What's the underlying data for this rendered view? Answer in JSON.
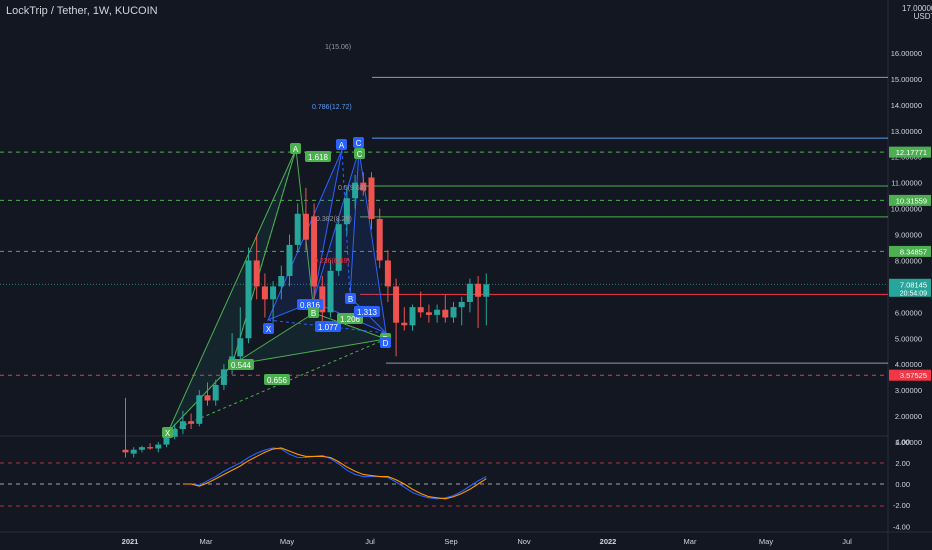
{
  "header": {
    "symbol_title": "LockTrip / Tether, 1W, KUCOIN"
  },
  "price_axis": {
    "currency_top": "17.00000",
    "currency": "USDT",
    "ticks": [
      "16.00000",
      "15.00000",
      "14.00000",
      "13.00000",
      "12.00000",
      "11.00000",
      "10.00000",
      "9.00000",
      "8.00000",
      "7.00000",
      "6.00000",
      "5.00000",
      "4.00000",
      "3.00000",
      "2.00000",
      "1.00000"
    ],
    "badges": [
      {
        "text": "12.17771",
        "color": "#4caf50"
      },
      {
        "text": "10.31559",
        "color": "#4caf50"
      },
      {
        "text": "8.34857",
        "color": "#4caf50"
      },
      {
        "text": "7.08145",
        "color": "#26a69a",
        "sub": "20:54:09"
      },
      {
        "text": "3.57525",
        "color": "#f23645"
      }
    ]
  },
  "osc_axis": {
    "ticks": [
      "4.00",
      "2.00",
      "0.00",
      "-2.00",
      "-4.00"
    ]
  },
  "time_axis": {
    "labels": [
      "2021",
      "Mar",
      "May",
      "Jul",
      "Sep",
      "Nov",
      "2022",
      "Mar",
      "May",
      "Jul"
    ]
  },
  "fib_labels": [
    {
      "text": "1(15.06)",
      "color": "#9598a1"
    },
    {
      "text": "0.786(12.72)",
      "color": "#5b9cf6"
    },
    {
      "text": "1.618",
      "color": "#4caf50"
    },
    {
      "text": "0.5(9.68)",
      "color": "#9598a1"
    },
    {
      "text": "0.382(8.29)",
      "color": "#9598a1"
    },
    {
      "text": "0.236(6.69)",
      "color": "#f23645"
    }
  ],
  "pattern_labels": {
    "points": [
      "X",
      "A",
      "B",
      "C",
      "D",
      "X",
      "A",
      "B",
      "C",
      "D"
    ],
    "ratios": [
      "0.544",
      "0.656",
      "0.816",
      "1.077",
      "1.206",
      "1.313",
      "1.618"
    ]
  },
  "colors": {
    "bull": "#26a69a",
    "bear": "#ef5350",
    "green_pattern": "#4caf50",
    "blue_pattern": "#2962ff",
    "osc_blue": "#2962ff",
    "osc_orange": "#ff9800"
  },
  "chart_data": {
    "type": "candlestick",
    "title": "LockTrip / Tether, 1W, KUCOIN",
    "ylim": [
      0,
      17
    ],
    "last_price": 7.08145,
    "candles": [
      {
        "o": 0.7,
        "h": 2.7,
        "l": 0.4,
        "c": 0.6
      },
      {
        "o": 0.55,
        "h": 0.8,
        "l": 0.4,
        "c": 0.7
      },
      {
        "o": 0.7,
        "h": 0.85,
        "l": 0.6,
        "c": 0.8
      },
      {
        "o": 0.8,
        "h": 0.95,
        "l": 0.7,
        "c": 0.75
      },
      {
        "o": 0.75,
        "h": 1.0,
        "l": 0.6,
        "c": 0.9
      },
      {
        "o": 0.9,
        "h": 1.3,
        "l": 0.8,
        "c": 1.2
      },
      {
        "o": 1.2,
        "h": 1.7,
        "l": 1.1,
        "c": 1.5
      },
      {
        "o": 1.5,
        "h": 2.2,
        "l": 1.3,
        "c": 1.8
      },
      {
        "o": 1.8,
        "h": 2.1,
        "l": 1.5,
        "c": 1.7
      },
      {
        "o": 1.7,
        "h": 3.0,
        "l": 1.6,
        "c": 2.8
      },
      {
        "o": 2.8,
        "h": 3.3,
        "l": 2.4,
        "c": 2.6
      },
      {
        "o": 2.6,
        "h": 3.4,
        "l": 2.4,
        "c": 3.2
      },
      {
        "o": 3.2,
        "h": 4.0,
        "l": 3.0,
        "c": 3.8
      },
      {
        "o": 3.8,
        "h": 5.2,
        "l": 3.6,
        "c": 4.3
      },
      {
        "o": 4.3,
        "h": 6.2,
        "l": 4.0,
        "c": 5.0
      },
      {
        "o": 5.0,
        "h": 8.5,
        "l": 4.8,
        "c": 8.0
      },
      {
        "o": 8.0,
        "h": 9.0,
        "l": 6.5,
        "c": 7.0
      },
      {
        "o": 7.0,
        "h": 7.5,
        "l": 5.8,
        "c": 6.5
      },
      {
        "o": 6.5,
        "h": 7.2,
        "l": 5.6,
        "c": 7.0
      },
      {
        "o": 7.0,
        "h": 7.8,
        "l": 6.5,
        "c": 7.4
      },
      {
        "o": 7.4,
        "h": 9.0,
        "l": 7.0,
        "c": 8.6
      },
      {
        "o": 8.6,
        "h": 10.2,
        "l": 8.3,
        "c": 9.8
      },
      {
        "o": 9.8,
        "h": 10.8,
        "l": 8.4,
        "c": 8.8
      },
      {
        "o": 9.7,
        "h": 10.2,
        "l": 6.0,
        "c": 7.0
      },
      {
        "o": 7.0,
        "h": 7.4,
        "l": 5.4,
        "c": 6.0
      },
      {
        "o": 6.0,
        "h": 8.0,
        "l": 5.8,
        "c": 7.6
      },
      {
        "o": 7.6,
        "h": 9.6,
        "l": 7.4,
        "c": 9.4
      },
      {
        "o": 9.4,
        "h": 10.8,
        "l": 9.0,
        "c": 10.4
      },
      {
        "o": 10.4,
        "h": 11.3,
        "l": 10.0,
        "c": 11.0
      },
      {
        "o": 11.0,
        "h": 11.4,
        "l": 10.5,
        "c": 10.7
      },
      {
        "o": 11.2,
        "h": 11.4,
        "l": 9.2,
        "c": 9.6
      },
      {
        "o": 9.6,
        "h": 10.0,
        "l": 7.7,
        "c": 8.0
      },
      {
        "o": 8.0,
        "h": 8.4,
        "l": 6.4,
        "c": 7.0
      },
      {
        "o": 7.0,
        "h": 7.3,
        "l": 4.3,
        "c": 5.6
      },
      {
        "o": 5.6,
        "h": 6.2,
        "l": 5.3,
        "c": 5.5
      },
      {
        "o": 5.5,
        "h": 6.3,
        "l": 5.3,
        "c": 6.2
      },
      {
        "o": 6.2,
        "h": 6.8,
        "l": 5.8,
        "c": 6.0
      },
      {
        "o": 6.0,
        "h": 6.3,
        "l": 5.6,
        "c": 5.9
      },
      {
        "o": 5.9,
        "h": 6.3,
        "l": 5.6,
        "c": 6.1
      },
      {
        "o": 6.1,
        "h": 6.7,
        "l": 5.6,
        "c": 5.8
      },
      {
        "o": 5.8,
        "h": 6.4,
        "l": 5.6,
        "c": 6.2
      },
      {
        "o": 6.2,
        "h": 6.6,
        "l": 5.5,
        "c": 6.4
      },
      {
        "o": 6.4,
        "h": 7.3,
        "l": 6.0,
        "c": 7.1
      },
      {
        "o": 7.1,
        "h": 7.4,
        "l": 5.4,
        "c": 6.6
      },
      {
        "o": 6.6,
        "h": 7.5,
        "l": 5.5,
        "c": 7.08
      }
    ],
    "horizontal_levels": [
      {
        "price": 15.06,
        "color": "#9598a1",
        "style": "solid"
      },
      {
        "price": 12.72,
        "color": "#5b9cf6",
        "style": "solid"
      },
      {
        "price": 12.17771,
        "color": "#4caf50",
        "style": "dashed"
      },
      {
        "price": 10.87,
        "color": "#4caf50",
        "style": "solid"
      },
      {
        "price": 10.31559,
        "color": "#4caf50",
        "style": "dashed"
      },
      {
        "price": 9.68,
        "color": "#4caf50",
        "style": "solid"
      },
      {
        "price": 8.34857,
        "color": "#4caf50",
        "style": "dashed"
      },
      {
        "price": 6.69,
        "color": "#f23645",
        "style": "solid"
      },
      {
        "price": 4.04,
        "color": "#9598a1",
        "style": "solid"
      },
      {
        "price": 3.57525,
        "color": "#f23645",
        "style": "dashed"
      }
    ],
    "oscillator": {
      "ylim": [
        -4.6,
        4.6
      ],
      "series": [
        {
          "color": "#2962ff",
          "values": [
            0,
            0,
            0,
            0,
            0,
            0,
            0,
            0,
            0,
            -0.1,
            0.3,
            0.7,
            1.2,
            1.6,
            2.0,
            2.5,
            2.9,
            3.2,
            3.4,
            3.3,
            2.8,
            2.5,
            2.5,
            2.6,
            2.7,
            2.4,
            1.9,
            1.3,
            0.9,
            0.7,
            0.7,
            0.7,
            0.6,
            0.2,
            -0.3,
            -0.8,
            -1.1,
            -1.3,
            -1.4,
            -1.3,
            -1.1,
            -0.7,
            -0.2,
            0.3,
            0.7
          ]
        },
        {
          "color": "#ff9800",
          "values": [
            0,
            0,
            0,
            0,
            0,
            0,
            0,
            0,
            0,
            -0.2,
            0.1,
            0.5,
            0.9,
            1.3,
            1.7,
            2.2,
            2.6,
            3.0,
            3.3,
            3.4,
            3.1,
            2.8,
            2.6,
            2.6,
            2.6,
            2.5,
            2.1,
            1.6,
            1.2,
            0.9,
            0.8,
            0.7,
            0.7,
            0.4,
            0.0,
            -0.5,
            -0.9,
            -1.2,
            -1.3,
            -1.4,
            -1.2,
            -0.9,
            -0.5,
            0.0,
            0.5
          ]
        }
      ]
    }
  }
}
